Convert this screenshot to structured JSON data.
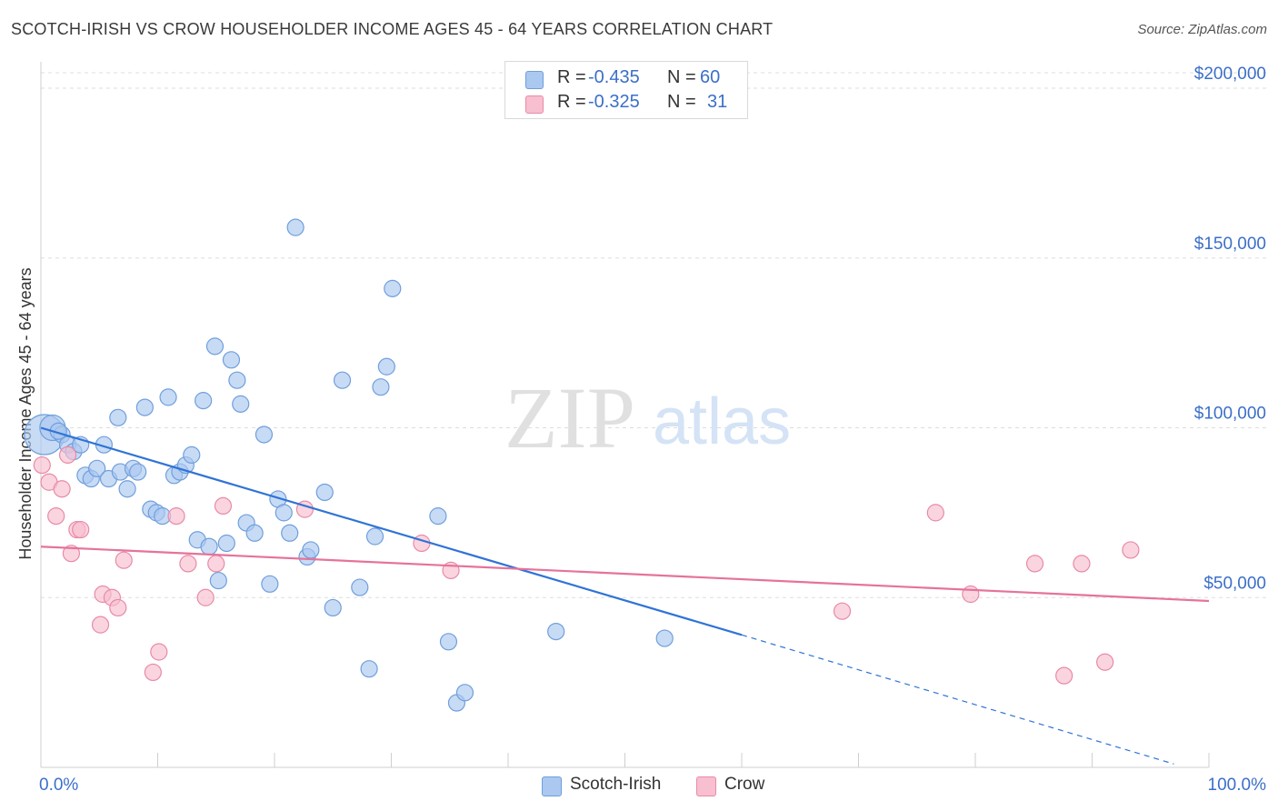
{
  "header": {
    "title": "SCOTCH-IRISH VS CROW HOUSEHOLDER INCOME AGES 45 - 64 YEARS CORRELATION CHART",
    "source": "Source: ZipAtlas.com"
  },
  "watermark": {
    "zip": "ZIP",
    "atlas": "atlas"
  },
  "legend_top": {
    "rows": [
      {
        "r_label": "R =",
        "r_value": "-0.435",
        "n_label": "N =",
        "n_value": "60"
      },
      {
        "r_label": "R =",
        "r_value": "-0.325",
        "n_label": "N =",
        "n_value": "31"
      }
    ]
  },
  "colors": {
    "blue_fill": "#aac8f0",
    "blue_stroke": "#6f9fdc",
    "blue_line": "#2f73d6",
    "pink_fill": "#f7bfd0",
    "pink_stroke": "#e88aa6",
    "pink_line": "#e5739a",
    "axis_label": "#3b6fc9",
    "grid": "#dddddd"
  },
  "chart_data": {
    "type": "scatter",
    "title": "SCOTCH-IRISH VS CROW HOUSEHOLDER INCOME AGES 45 - 64 YEARS CORRELATION CHART",
    "ylabel": "Householder Income Ages 45 - 64 years",
    "xlabel": "",
    "xlim": [
      0,
      100
    ],
    "ylim": [
      0,
      200000
    ],
    "x_tick_labels": [
      "0.0%",
      "100.0%"
    ],
    "y_ticks": [
      50000,
      100000,
      150000,
      200000
    ],
    "y_tick_labels": [
      "$50,000",
      "$100,000",
      "$150,000",
      "$200,000"
    ],
    "grid": true,
    "legend_position": "bottom-center",
    "series": [
      {
        "name": "Scotch-Irish",
        "R": -0.435,
        "N": 60,
        "trend": {
          "x0": 0,
          "y0": 100000,
          "x1": 60,
          "y1": 39000,
          "dashed_to_x": 97,
          "dashed_to_y": 1000
        },
        "points": [
          [
            0.3,
            98000,
            22
          ],
          [
            1.0,
            100000,
            14
          ],
          [
            1.8,
            98000,
            9
          ],
          [
            2.3,
            95000,
            9
          ],
          [
            2.8,
            93000,
            9
          ],
          [
            3.4,
            95000,
            9
          ],
          [
            3.8,
            86000,
            9
          ],
          [
            4.3,
            85000,
            9
          ],
          [
            4.8,
            88000,
            9
          ],
          [
            5.4,
            95000,
            9
          ],
          [
            5.8,
            85000,
            9
          ],
          [
            6.6,
            103000,
            9
          ],
          [
            6.8,
            87000,
            9
          ],
          [
            7.4,
            82000,
            9
          ],
          [
            7.9,
            88000,
            9
          ],
          [
            8.3,
            87000,
            9
          ],
          [
            8.9,
            106000,
            9
          ],
          [
            9.4,
            76000,
            9
          ],
          [
            9.9,
            75000,
            9
          ],
          [
            10.4,
            74000,
            9
          ],
          [
            10.9,
            109000,
            9
          ],
          [
            11.4,
            86000,
            9
          ],
          [
            11.9,
            87000,
            9
          ],
          [
            12.4,
            89000,
            9
          ],
          [
            12.9,
            92000,
            9
          ],
          [
            13.4,
            67000,
            9
          ],
          [
            13.9,
            108000,
            9
          ],
          [
            14.4,
            65000,
            9
          ],
          [
            14.9,
            124000,
            9
          ],
          [
            15.2,
            55000,
            9
          ],
          [
            15.9,
            66000,
            9
          ],
          [
            16.3,
            120000,
            9
          ],
          [
            16.8,
            114000,
            9
          ],
          [
            17.1,
            107000,
            9
          ],
          [
            17.6,
            72000,
            9
          ],
          [
            18.3,
            69000,
            9
          ],
          [
            19.1,
            98000,
            9
          ],
          [
            19.6,
            54000,
            9
          ],
          [
            20.3,
            79000,
            9
          ],
          [
            20.8,
            75000,
            9
          ],
          [
            21.3,
            69000,
            9
          ],
          [
            21.8,
            159000,
            9
          ],
          [
            22.8,
            62000,
            9
          ],
          [
            23.1,
            64000,
            9
          ],
          [
            24.3,
            81000,
            9
          ],
          [
            25.0,
            47000,
            9
          ],
          [
            25.8,
            114000,
            9
          ],
          [
            27.3,
            53000,
            9
          ],
          [
            28.1,
            29000,
            9
          ],
          [
            28.6,
            68000,
            9
          ],
          [
            29.1,
            112000,
            9
          ],
          [
            29.6,
            118000,
            9
          ],
          [
            30.1,
            141000,
            9
          ],
          [
            34.0,
            74000,
            9
          ],
          [
            34.9,
            37000,
            9
          ],
          [
            35.6,
            19000,
            9
          ],
          [
            36.3,
            22000,
            9
          ],
          [
            44.1,
            40000,
            9
          ],
          [
            53.4,
            38000,
            9
          ],
          [
            1.5,
            99000,
            9
          ]
        ]
      },
      {
        "name": "Crow",
        "R": -0.325,
        "N": 31,
        "trend": {
          "x0": 0,
          "y0": 65000,
          "x1": 100,
          "y1": 49000
        },
        "points": [
          [
            0.1,
            89000,
            9
          ],
          [
            0.7,
            84000,
            9
          ],
          [
            1.3,
            74000,
            9
          ],
          [
            1.8,
            82000,
            9
          ],
          [
            2.3,
            92000,
            9
          ],
          [
            2.6,
            63000,
            9
          ],
          [
            3.1,
            70000,
            9
          ],
          [
            3.4,
            70000,
            9
          ],
          [
            5.1,
            42000,
            9
          ],
          [
            5.3,
            51000,
            9
          ],
          [
            6.1,
            50000,
            9
          ],
          [
            6.6,
            47000,
            9
          ],
          [
            7.1,
            61000,
            9
          ],
          [
            9.6,
            28000,
            9
          ],
          [
            10.1,
            34000,
            9
          ],
          [
            11.6,
            74000,
            9
          ],
          [
            12.6,
            60000,
            9
          ],
          [
            14.1,
            50000,
            9
          ],
          [
            15.0,
            60000,
            9
          ],
          [
            15.6,
            77000,
            9
          ],
          [
            22.6,
            76000,
            9
          ],
          [
            32.6,
            66000,
            9
          ],
          [
            35.1,
            58000,
            9
          ],
          [
            68.6,
            46000,
            9
          ],
          [
            76.6,
            75000,
            9
          ],
          [
            79.6,
            51000,
            9
          ],
          [
            85.1,
            60000,
            9
          ],
          [
            87.6,
            27000,
            9
          ],
          [
            89.1,
            60000,
            9
          ],
          [
            91.1,
            31000,
            9
          ],
          [
            93.3,
            64000,
            9
          ]
        ]
      }
    ]
  },
  "bottom_legend": [
    {
      "label": "Scotch-Irish"
    },
    {
      "label": "Crow"
    }
  ]
}
